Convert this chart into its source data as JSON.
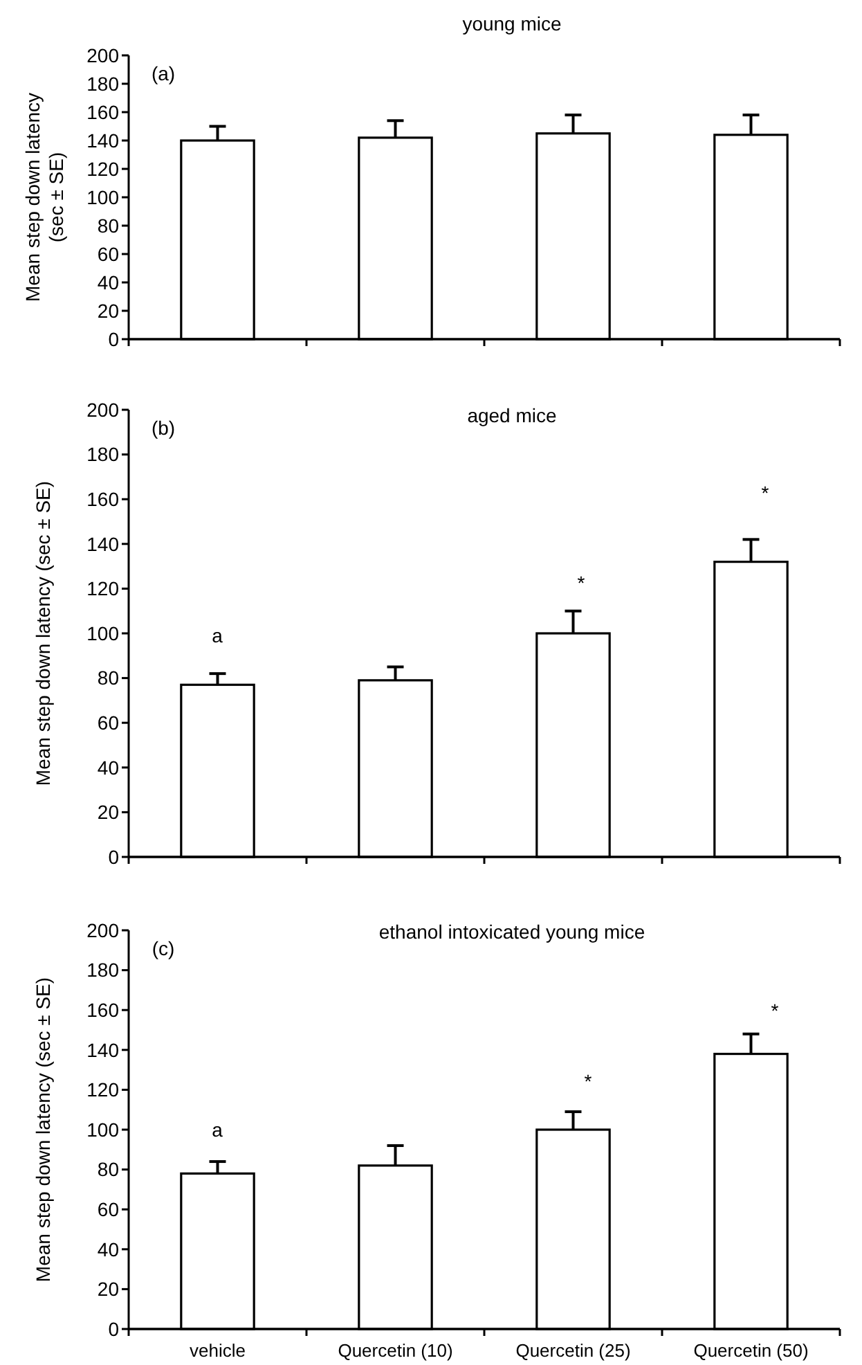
{
  "chart_data": [
    {
      "type": "bar",
      "title": "young mice",
      "ylabel": "Mean step down latency (sec ± SE)",
      "categories": [
        null,
        null,
        null,
        null
      ],
      "values": [
        140,
        142,
        145,
        144
      ],
      "errors": [
        [
          140,
          150
        ],
        [
          142,
          154
        ],
        [
          145,
          158
        ],
        [
          144,
          158
        ]
      ],
      "color": "#ffffff",
      "ylim": [
        0,
        200
      ],
      "yticks": [
        0,
        20,
        40,
        60,
        80,
        100,
        120,
        140,
        160,
        180,
        200
      ],
      "annotations": [
        "(a)"
      ]
    },
    {
      "type": "bar",
      "title": "aged mice",
      "ylabel": "Mean step down latency (sec ± SE)",
      "categories": [
        null,
        null,
        null,
        null
      ],
      "values": [
        77,
        79,
        100,
        132
      ],
      "errors": [
        [
          77,
          82
        ],
        [
          79,
          85
        ],
        [
          100,
          110
        ],
        [
          132,
          142
        ]
      ],
      "color": "#ffffff",
      "ylim": [
        0,
        200
      ],
      "yticks": [
        0,
        20,
        40,
        60,
        80,
        100,
        120,
        140,
        160,
        180,
        200
      ],
      "annotations": [
        "(b)",
        "a",
        "*",
        "*"
      ]
    },
    {
      "type": "bar",
      "title": "ethanol intoxicated young mice",
      "ylabel": "Mean step down latency (sec ± SE)",
      "categories": [
        "vehicle",
        "Quercetin (10)",
        "Quercetin (25)",
        "Quercetin (50)"
      ],
      "values": [
        78,
        82,
        100,
        138
      ],
      "errors": [
        [
          78,
          84
        ],
        [
          82,
          92
        ],
        [
          100,
          109
        ],
        [
          138,
          148
        ]
      ],
      "color": "#ffffff",
      "ylim": [
        0,
        200
      ],
      "yticks": [
        0,
        20,
        40,
        60,
        80,
        100,
        120,
        140,
        160,
        180,
        200
      ],
      "annotations": [
        "(c)",
        "a",
        "*",
        "*"
      ]
    }
  ]
}
